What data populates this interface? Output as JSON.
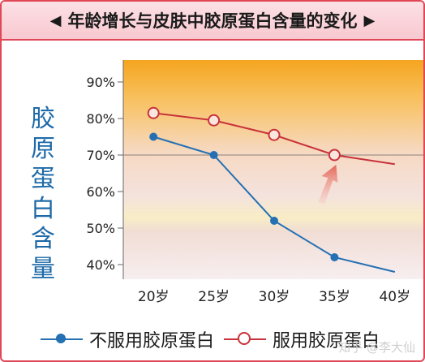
{
  "title": "年龄增长与皮肤中胶原蛋白含量的变化",
  "title_arrows": [
    "◀",
    "▶"
  ],
  "watermark": "知乎 @李大仙",
  "colors": {
    "taken": "#c8323a",
    "not_taken": "#2470b3",
    "ylabel": "#1e6aa8",
    "accent": "#e04757"
  },
  "chart_data": {
    "type": "line",
    "ylabel": "胶原蛋白含量",
    "xlabel": "",
    "x": [
      20,
      25,
      30,
      35,
      40
    ],
    "x_tick_labels": [
      "20岁",
      "25岁",
      "30岁",
      "35岁",
      "40岁"
    ],
    "y_ticks": [
      40,
      50,
      60,
      70,
      80,
      90
    ],
    "y_tick_labels": [
      "40%",
      "50%",
      "60%",
      "70%",
      "80%",
      "90%"
    ],
    "ylim": [
      36,
      96
    ],
    "xlim": [
      17.5,
      42.5
    ],
    "reference_line": 70,
    "grid": false,
    "legend_position": "bottom",
    "series": [
      {
        "name": "不服用胶原蛋白",
        "color": "#2470b3",
        "marker": "filled",
        "x": [
          20,
          25,
          30,
          35,
          40
        ],
        "y": [
          75,
          70,
          52,
          42,
          38
        ]
      },
      {
        "name": "服用胶原蛋白",
        "color": "#c8323a",
        "marker": "open",
        "x": [
          20,
          25,
          30,
          35,
          40
        ],
        "y": [
          81.5,
          79.5,
          75.5,
          70,
          67.5
        ],
        "marked_points": [
          20,
          25,
          30,
          35
        ]
      }
    ]
  }
}
